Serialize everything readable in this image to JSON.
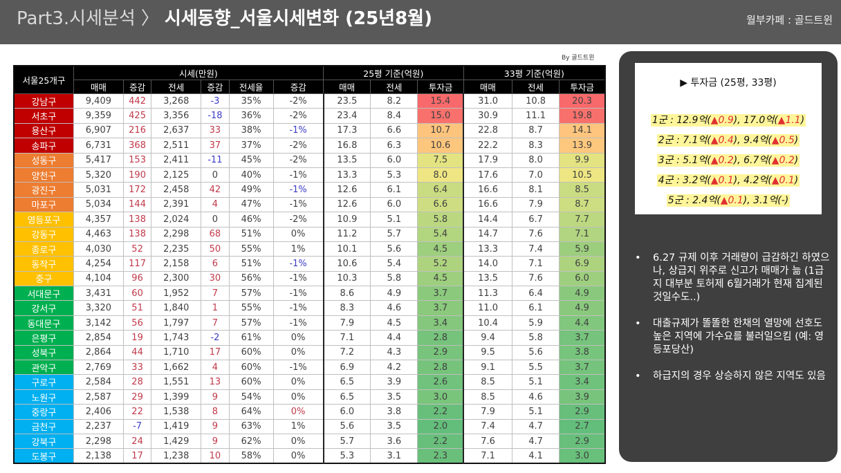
{
  "header": {
    "part": "Part3.시세분석",
    "sep": "〉",
    "title": "시세동향_서울시세변화 (25년8월)",
    "credit": "월부카페 : 골드트윈"
  },
  "byline": "By 골드트윈",
  "table": {
    "corner": "서울25개구",
    "groups": [
      "시세(만원)",
      "25평 기준(억원)",
      "33평 기준(억원)"
    ],
    "columns": [
      "매매",
      "증감",
      "전세",
      "증감",
      "전세율",
      "증감",
      "매매",
      "전세",
      "투자금",
      "매매",
      "전세",
      "투자금"
    ],
    "rows": [
      {
        "gu": "강남구",
        "tier": 1,
        "v": [
          "9,409",
          "442",
          "3,268",
          "-3",
          "35%",
          "-2%",
          "23.5",
          "8.2",
          "15.4",
          "31.0",
          "10.8",
          "20.3"
        ]
      },
      {
        "gu": "서초구",
        "tier": 1,
        "v": [
          "9,359",
          "425",
          "3,356",
          "-18",
          "36%",
          "-2%",
          "23.4",
          "8.4",
          "15.0",
          "30.9",
          "11.1",
          "19.8"
        ]
      },
      {
        "gu": "용산구",
        "tier": 1,
        "v": [
          "6,907",
          "216",
          "2,637",
          "33",
          "38%",
          "-1%",
          "17.3",
          "6.6",
          "10.7",
          "22.8",
          "8.7",
          "14.1"
        ]
      },
      {
        "gu": "송파구",
        "tier": 1,
        "v": [
          "6,731",
          "368",
          "2,511",
          "37",
          "37%",
          "-2%",
          "16.8",
          "6.3",
          "10.6",
          "22.2",
          "8.3",
          "13.9"
        ]
      },
      {
        "gu": "성동구",
        "tier": 2,
        "v": [
          "5,417",
          "153",
          "2,411",
          "-11",
          "45%",
          "-2%",
          "13.5",
          "6.0",
          "7.5",
          "17.9",
          "8.0",
          "9.9"
        ]
      },
      {
        "gu": "양천구",
        "tier": 2,
        "v": [
          "5,320",
          "190",
          "2,125",
          "0",
          "40%",
          "-1%",
          "13.3",
          "5.3",
          "8.0",
          "17.6",
          "7.0",
          "10.5"
        ]
      },
      {
        "gu": "광진구",
        "tier": 2,
        "v": [
          "5,031",
          "172",
          "2,458",
          "42",
          "49%",
          "-1%",
          "12.6",
          "6.1",
          "6.4",
          "16.6",
          "8.1",
          "8.5"
        ]
      },
      {
        "gu": "마포구",
        "tier": 2,
        "v": [
          "5,034",
          "144",
          "2,391",
          "4",
          "47%",
          "-1%",
          "12.6",
          "6.0",
          "6.6",
          "16.6",
          "7.9",
          "8.7"
        ]
      },
      {
        "gu": "영등포구",
        "tier": 3,
        "v": [
          "4,357",
          "138",
          "2,024",
          "0",
          "46%",
          "-2%",
          "10.9",
          "5.1",
          "5.8",
          "14.4",
          "6.7",
          "7.7"
        ]
      },
      {
        "gu": "강동구",
        "tier": 3,
        "v": [
          "4,463",
          "138",
          "2,298",
          "68",
          "51%",
          "0%",
          "11.2",
          "5.7",
          "5.4",
          "14.7",
          "7.6",
          "7.1"
        ]
      },
      {
        "gu": "종로구",
        "tier": 3,
        "v": [
          "4,030",
          "52",
          "2,235",
          "50",
          "55%",
          "1%",
          "10.1",
          "5.6",
          "4.5",
          "13.3",
          "7.4",
          "5.9"
        ]
      },
      {
        "gu": "동작구",
        "tier": 3,
        "v": [
          "4,254",
          "117",
          "2,158",
          "6",
          "51%",
          "-1%",
          "10.6",
          "5.4",
          "5.2",
          "14.0",
          "7.1",
          "6.9"
        ]
      },
      {
        "gu": "중구",
        "tier": 3,
        "v": [
          "4,104",
          "96",
          "2,300",
          "30",
          "56%",
          "-1%",
          "10.3",
          "5.8",
          "4.5",
          "13.5",
          "7.6",
          "6.0"
        ]
      },
      {
        "gu": "서대문구",
        "tier": 4,
        "v": [
          "3,431",
          "60",
          "1,952",
          "7",
          "57%",
          "-1%",
          "8.6",
          "4.9",
          "3.7",
          "11.3",
          "6.4",
          "4.9"
        ]
      },
      {
        "gu": "강서구",
        "tier": 4,
        "v": [
          "3,320",
          "51",
          "1,840",
          "1",
          "55%",
          "-1%",
          "8.3",
          "4.6",
          "3.7",
          "11.0",
          "6.1",
          "4.9"
        ]
      },
      {
        "gu": "동대문구",
        "tier": 4,
        "v": [
          "3,142",
          "56",
          "1,797",
          "7",
          "57%",
          "-1%",
          "7.9",
          "4.5",
          "3.4",
          "10.4",
          "5.9",
          "4.4"
        ]
      },
      {
        "gu": "은평구",
        "tier": 4,
        "v": [
          "2,854",
          "19",
          "1,743",
          "-2",
          "61%",
          "0%",
          "7.1",
          "4.4",
          "2.8",
          "9.4",
          "5.8",
          "3.7"
        ]
      },
      {
        "gu": "성북구",
        "tier": 4,
        "v": [
          "2,864",
          "44",
          "1,710",
          "17",
          "60%",
          "0%",
          "7.2",
          "4.3",
          "2.9",
          "9.5",
          "5.6",
          "3.8"
        ]
      },
      {
        "gu": "관악구",
        "tier": 4,
        "v": [
          "2,769",
          "33",
          "1,662",
          "4",
          "60%",
          "-1%",
          "6.9",
          "4.2",
          "2.8",
          "9.1",
          "5.5",
          "3.7"
        ]
      },
      {
        "gu": "구로구",
        "tier": 5,
        "v": [
          "2,584",
          "28",
          "1,551",
          "13",
          "60%",
          "0%",
          "6.5",
          "3.9",
          "2.6",
          "8.5",
          "5.1",
          "3.4"
        ]
      },
      {
        "gu": "노원구",
        "tier": 5,
        "v": [
          "2,587",
          "29",
          "1,399",
          "9",
          "54%",
          "0%",
          "6.5",
          "3.5",
          "3.0",
          "8.5",
          "4.6",
          "3.9"
        ]
      },
      {
        "gu": "중랑구",
        "tier": 5,
        "v": [
          "2,406",
          "22",
          "1,538",
          "8",
          "64%",
          "0%",
          "6.0",
          "3.8",
          "2.2",
          "7.9",
          "5.1",
          "2.9"
        ]
      },
      {
        "gu": "금천구",
        "tier": 5,
        "v": [
          "2,237",
          "-7",
          "1,419",
          "9",
          "63%",
          "1%",
          "5.6",
          "3.5",
          "2.0",
          "7.4",
          "4.7",
          "2.7"
        ]
      },
      {
        "gu": "강북구",
        "tier": 5,
        "v": [
          "2,298",
          "24",
          "1,429",
          "9",
          "62%",
          "0%",
          "5.7",
          "3.6",
          "2.2",
          "7.6",
          "4.7",
          "2.9"
        ]
      },
      {
        "gu": "도봉구",
        "tier": 5,
        "v": [
          "2,138",
          "17",
          "1,238",
          "10",
          "58%",
          "0%",
          "5.3",
          "3.1",
          "2.3",
          "7.1",
          "4.1",
          "3.0"
        ]
      }
    ]
  },
  "colors": {
    "tier1": "#c00000",
    "tier2": "#ed7d31",
    "tier3": "#ffc000",
    "tier4": "#00b050",
    "tier5": "#00b0f0",
    "heat_high": "#f8696b",
    "heat_mid": "#ffeb84",
    "heat_low": "#63be7b"
  },
  "invest_box": {
    "title": "▶ 투자금 (25평, 33평)",
    "lines": [
      {
        "a": "1군 : 12.9억(",
        "u1": "▲0.9",
        "b": "), 17.0억(",
        "u2": "▲1.1",
        "c": ")"
      },
      {
        "a": "2군 : 7.1억(",
        "u1": "▲0.4",
        "b": "), 9.4억(",
        "u2": "▲0.5",
        "c": ")"
      },
      {
        "a": "3군 : 5.1억(",
        "u1": "▲0.2",
        "b": "), 6.7억(",
        "u2": "▲0.2",
        "c": ")"
      },
      {
        "a": "4군 : 3.2억(",
        "u1": "▲0.1",
        "b": "), 4.2억(",
        "u2": "▲0.1",
        "c": ")"
      },
      {
        "a": "5군 : 2.4억(",
        "u1": "▲0.1",
        "b": "), 3.1억(-)",
        "u2": "",
        "c": ""
      }
    ]
  },
  "bullets": [
    "6.27 규제 이후 거래량이 급감하긴 하였으나, 상급지 위주로 신고가 매매가 늚 (1급지 대부분 토허제 6월거래가 현재 집계된 것일수도..)",
    "대출규제가 똘똘한 한채의 열망에 선호도 높은 지역에 가수요를 불러일으킴 (예: 영등포당산)",
    "하급지의 경우 상승하지 않은 지역도 있음"
  ]
}
